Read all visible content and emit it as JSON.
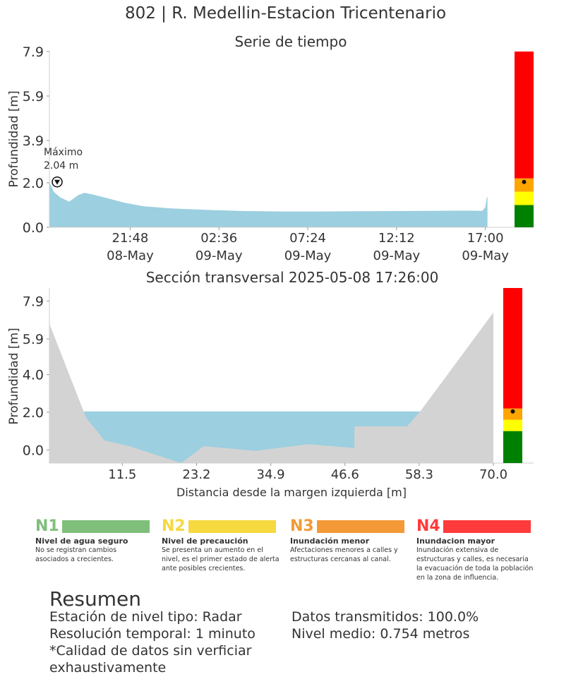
{
  "title": "802 | R. Medellin-Estacion Tricentenario",
  "chart_data": [
    {
      "type": "area",
      "title": "Serie de tiempo",
      "ylabel": "Profundidad [m]",
      "xlabel": "",
      "ylim": [
        0.0,
        7.9
      ],
      "yticks": [
        "0.0",
        "2.0",
        "3.9",
        "5.9",
        "7.9"
      ],
      "ytick_values": [
        0.0,
        2.0,
        3.9,
        5.9,
        7.9
      ],
      "xlim": [
        "2025-05-08 17:26",
        "2025-05-09 17:26"
      ],
      "xticks": [
        {
          "time": "2025-05-08 21:48",
          "line1": "21:48",
          "line2": "08-May"
        },
        {
          "time": "2025-05-09 02:36",
          "line1": "02:36",
          "line2": "09-May"
        },
        {
          "time": "2025-05-09 07:24",
          "line1": "07:24",
          "line2": "09-May"
        },
        {
          "time": "2025-05-09 12:12",
          "line1": "12:12",
          "line2": "09-May"
        },
        {
          "time": "2025-05-09 17:00",
          "line1": "17:00",
          "line2": "09-May"
        }
      ],
      "series": [
        {
          "color": "#9ccfe0",
          "points": [
            [
              "2025-05-08 17:26",
              2.04
            ],
            [
              "2025-05-08 17:40",
              1.6
            ],
            [
              "2025-05-08 18:00",
              1.35
            ],
            [
              "2025-05-08 18:30",
              1.15
            ],
            [
              "2025-05-08 19:00",
              1.45
            ],
            [
              "2025-05-08 19:20",
              1.55
            ],
            [
              "2025-05-08 19:45",
              1.48
            ],
            [
              "2025-05-08 20:30",
              1.32
            ],
            [
              "2025-05-08 21:30",
              1.1
            ],
            [
              "2025-05-08 22:30",
              0.95
            ],
            [
              "2025-05-09 00:00",
              0.85
            ],
            [
              "2025-05-09 02:00",
              0.78
            ],
            [
              "2025-05-09 04:00",
              0.73
            ],
            [
              "2025-05-09 06:00",
              0.71
            ],
            [
              "2025-05-09 08:00",
              0.71
            ],
            [
              "2025-05-09 10:00",
              0.72
            ],
            [
              "2025-05-09 12:00",
              0.73
            ],
            [
              "2025-05-09 14:00",
              0.74
            ],
            [
              "2025-05-09 16:00",
              0.75
            ],
            [
              "2025-05-09 16:50",
              0.74
            ],
            [
              "2025-05-09 17:00",
              0.9
            ],
            [
              "2025-05-09 17:05",
              1.35
            ],
            [
              "2025-05-09 17:07",
              1.35
            ]
          ]
        }
      ],
      "annotation": {
        "label_line1": "Máximo",
        "label_line2": "2.04 m",
        "time": "2025-05-08 17:26",
        "value": 2.04
      },
      "level_bar": [
        {
          "level": "N1",
          "from": 0.0,
          "to": 1.0,
          "color": "#008000"
        },
        {
          "level": "N2",
          "from": 1.0,
          "to": 1.6,
          "color": "#ffff00"
        },
        {
          "level": "N3",
          "from": 1.6,
          "to": 2.2,
          "color": "#ffa500"
        },
        {
          "level": "N4",
          "from": 2.2,
          "to": 7.9,
          "color": "#ff0000"
        }
      ],
      "current_level": 2.04
    },
    {
      "type": "area",
      "title": "Sección transversal 2025-05-08 17:26:00",
      "xlabel": "Distancia desde la margen izquierda [m]",
      "ylabel": "Profundidad [m]",
      "xlim": [
        0,
        70.0
      ],
      "ylim": [
        -0.7,
        8.6
      ],
      "xticks": [
        "11.5",
        "23.2",
        "34.9",
        "46.6",
        "58.3",
        "70.0"
      ],
      "xtick_values": [
        11.5,
        23.2,
        34.9,
        46.6,
        58.3,
        70.0
      ],
      "yticks": [
        "0.0",
        "2.0",
        "4.0",
        "5.9",
        "7.9"
      ],
      "ytick_values": [
        0.0,
        2.0,
        4.0,
        5.9,
        7.9
      ],
      "water_level": 2.04,
      "water_color": "#9ccfe0",
      "ground_color": "#d3d3d3",
      "profile": [
        [
          0,
          6.7
        ],
        [
          5.8,
          1.7
        ],
        [
          8.7,
          0.5
        ],
        [
          12.6,
          0.2
        ],
        [
          20.8,
          -0.7
        ],
        [
          24.3,
          0.2
        ],
        [
          32.5,
          -0.05
        ],
        [
          40.8,
          0.3
        ],
        [
          48.1,
          0.1
        ],
        [
          48.1,
          1.25
        ],
        [
          56.4,
          1.25
        ],
        [
          58.6,
          2.1
        ],
        [
          70.0,
          7.3
        ]
      ],
      "level_bar": [
        {
          "level": "N1",
          "from": -0.7,
          "to": 1.0,
          "color": "#008000"
        },
        {
          "level": "N2",
          "from": 1.0,
          "to": 1.6,
          "color": "#ffff00"
        },
        {
          "level": "N3",
          "from": 1.6,
          "to": 2.2,
          "color": "#ffa500"
        },
        {
          "level": "N4",
          "from": 2.2,
          "to": 8.6,
          "color": "#ff0000"
        }
      ],
      "current_level": 2.04
    }
  ],
  "legend": [
    {
      "code": "N1",
      "title": "Nivel de agua seguro",
      "desc": "No se registran cambios asociados a crecientes.",
      "color": "#7fbf7b",
      "code_color": "#7fbf7b"
    },
    {
      "code": "N2",
      "title": "Nivel de precaución",
      "desc": "Se presenta un aumento en el nivel, es el primer estado de alerta ante posibles crecientes.",
      "color": "#f5d93e",
      "code_color": "#f5d93e"
    },
    {
      "code": "N3",
      "title": "Inundación menor",
      "desc": "Afectaciones menores a calles y estructuras cercanas al canal.",
      "color": "#f39a36",
      "code_color": "#f39a36"
    },
    {
      "code": "N4",
      "title": "Inundacion mayor",
      "desc": "Inundación extensiva de estructuras y calles, es necesaria la evacuación de toda la población en la zona de influencia.",
      "color": "#ff3b3b",
      "code_color": "#ff3b3b"
    }
  ],
  "summary": {
    "title": "Resumen",
    "station": "Estación de nivel tipo: Radar",
    "resolution": "Resolución temporal: 1 minuto",
    "quality_line1": "*Calidad de datos sin verficiar",
    "quality_line2": "exhaustivamente",
    "transmitted": "Datos transmitidos: 100.0%",
    "mean_level": "Nivel medio: 0.754 metros"
  }
}
